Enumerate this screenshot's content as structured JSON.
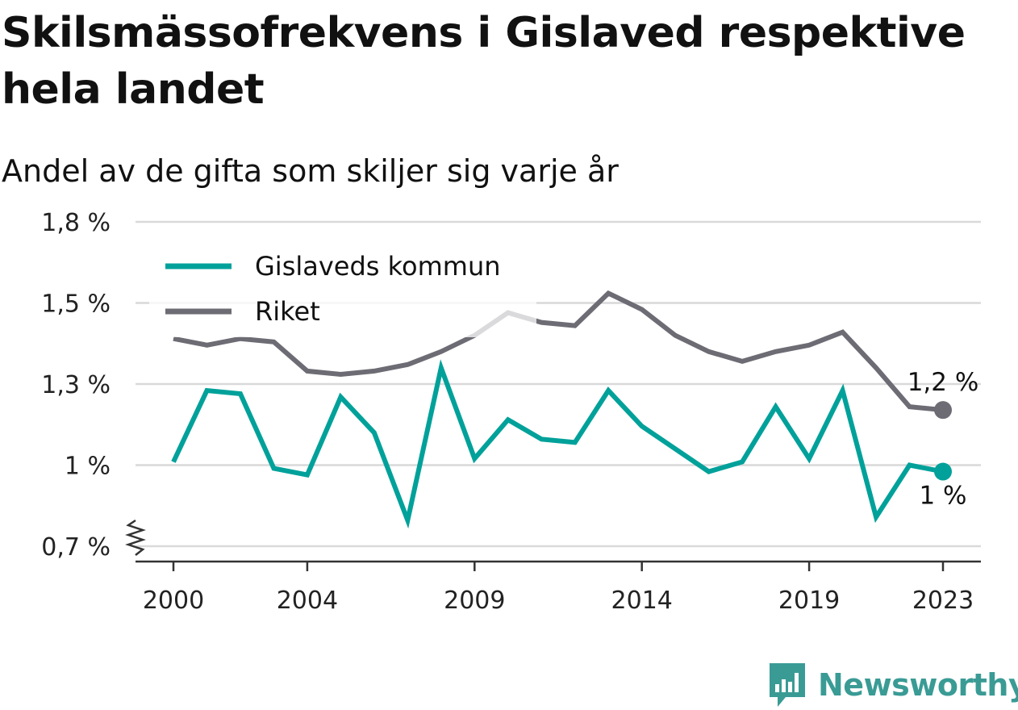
{
  "title": "Skilsmässofrekvens i Gislaved respektive hela landet",
  "subtitle": "Andel av de gifta som skiljer sig varje år",
  "brand": {
    "name": "Newsworthy",
    "icon": "bar-chart-bubble-icon",
    "color": "#3a9b95"
  },
  "chart_data": {
    "type": "line",
    "x": [
      2000,
      2001,
      2002,
      2003,
      2004,
      2005,
      2006,
      2007,
      2008,
      2009,
      2010,
      2011,
      2012,
      2013,
      2014,
      2015,
      2016,
      2017,
      2018,
      2019,
      2020,
      2021,
      2022,
      2023
    ],
    "x_tick_labels": [
      "2000",
      "2004",
      "2009",
      "2014",
      "2019",
      "2023"
    ],
    "x_ticks": [
      2000,
      2004,
      2009,
      2014,
      2019,
      2023
    ],
    "y_tick_labels": [
      "1,8 %",
      "1,5 %",
      "1,3 %",
      "1 %",
      "0,7 %"
    ],
    "y_ticks": [
      1.75,
      1.5,
      1.25,
      1.0,
      0.75
    ],
    "ylim": [
      0.7,
      1.75
    ],
    "y_axis_break": true,
    "grid": true,
    "legend_position": "top-left",
    "series": [
      {
        "name": "Gislaveds kommun",
        "color": "#00a19a",
        "values": [
          1.01,
          1.23,
          1.22,
          0.99,
          0.97,
          1.21,
          1.1,
          0.83,
          1.3,
          1.02,
          1.14,
          1.08,
          1.07,
          1.23,
          1.12,
          1.05,
          0.98,
          1.01,
          1.18,
          1.02,
          1.23,
          0.84,
          1.0,
          0.98
        ],
        "end_label": "1 %"
      },
      {
        "name": "Riket",
        "color": "#6d6b73",
        "values": [
          1.39,
          1.37,
          1.39,
          1.38,
          1.29,
          1.28,
          1.29,
          1.31,
          1.35,
          1.4,
          1.47,
          1.44,
          1.43,
          1.53,
          1.48,
          1.4,
          1.35,
          1.32,
          1.35,
          1.37,
          1.41,
          1.3,
          1.18,
          1.17
        ],
        "end_label": "1,2 %"
      }
    ]
  }
}
